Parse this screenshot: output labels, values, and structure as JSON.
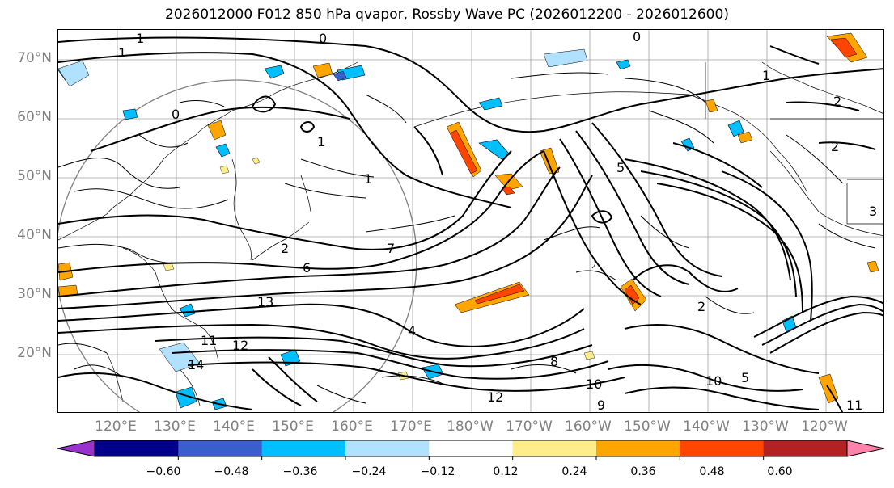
{
  "title": "2026012000 F012 850 hPa qvapor, Rossby Wave PC (2026012200 - 2026012600)",
  "lat_labels": [
    "70°N",
    "60°N",
    "50°N",
    "40°N",
    "30°N",
    "20°N"
  ],
  "lon_labels": [
    "120°E",
    "130°E",
    "140°E",
    "150°E",
    "160°E",
    "170°E",
    "180°W",
    "170°W",
    "160°W",
    "150°W",
    "140°W",
    "130°W",
    "120°W"
  ],
  "colorbar": {
    "colors": [
      "#9932CC",
      "#00008B",
      "#3A5FCD",
      "#00BFFF",
      "#B0E2FF",
      "#FFFFFF",
      "#FFEC8B",
      "#FFA500",
      "#FF4500",
      "#B22222",
      "#FF82AB"
    ],
    "ticks": [
      "−0.60",
      "−0.48",
      "−0.36",
      "−0.24",
      "−0.12",
      "0.12",
      "0.24",
      "0.36",
      "0.48",
      "0.60"
    ]
  },
  "contour_labels": [
    "1",
    "0",
    "1",
    "0",
    "1",
    "2",
    "1",
    "2",
    "0",
    "1",
    "2",
    "2",
    "3",
    "4",
    "5",
    "6",
    "7",
    "8",
    "9",
    "10",
    "11",
    "12",
    "13",
    "14",
    "5",
    "10",
    "11",
    "12"
  ]
}
